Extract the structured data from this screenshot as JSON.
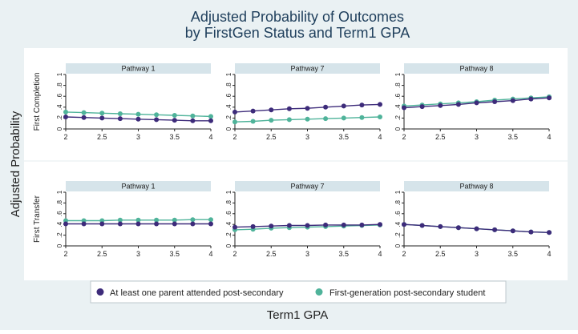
{
  "chart_data": {
    "type": "line",
    "title": "Adjusted Probability of Outcomes",
    "subtitle": "by FirstGen Status and Term1 GPA",
    "xlabel": "Term1 GPA",
    "ylabel": "Adjusted Probability",
    "row_labels": [
      "First Completion",
      "First Transfer"
    ],
    "column_labels": [
      "Pathway 1",
      "Pathway 7",
      "Pathway 8"
    ],
    "x": [
      2,
      2.25,
      2.5,
      2.75,
      3,
      3.25,
      3.5,
      3.75,
      4
    ],
    "x_ticks": [
      2,
      2.5,
      3,
      3.5,
      4
    ],
    "x_tick_labels": [
      "2",
      "2.5",
      "3",
      "3.5",
      "4"
    ],
    "xlim": [
      2,
      4
    ],
    "y_ticks": [
      0,
      0.2,
      0.4,
      0.6,
      0.8,
      1
    ],
    "y_tick_labels": [
      "0",
      ".2",
      ".4",
      ".6",
      ".8",
      "1"
    ],
    "ylim": [
      0,
      1
    ],
    "legend": {
      "placement": "bottom",
      "entries": [
        "At least one parent attended post-secondary",
        "First-generation post-secondary student"
      ]
    },
    "colors": {
      "parent": "#3d2b7a",
      "firstgen": "#4fb39a",
      "strip": "#d6e4ea",
      "outer_bg": "#eaf1f3"
    },
    "panels": [
      {
        "row": 0,
        "column": 0,
        "series": [
          {
            "values": [
              0.22,
              0.21,
              0.2,
              0.19,
              0.18,
              0.17,
              0.16,
              0.15,
              0.15
            ]
          },
          {
            "values": [
              0.31,
              0.3,
              0.29,
              0.28,
              0.27,
              0.26,
              0.25,
              0.24,
              0.23
            ]
          }
        ]
      },
      {
        "row": 0,
        "column": 1,
        "series": [
          {
            "values": [
              0.31,
              0.33,
              0.35,
              0.37,
              0.38,
              0.4,
              0.42,
              0.44,
              0.45
            ]
          },
          {
            "values": [
              0.13,
              0.14,
              0.16,
              0.17,
              0.18,
              0.19,
              0.2,
              0.21,
              0.22
            ]
          }
        ]
      },
      {
        "row": 0,
        "column": 2,
        "series": [
          {
            "values": [
              0.39,
              0.41,
              0.43,
              0.45,
              0.48,
              0.5,
              0.52,
              0.55,
              0.57
            ]
          },
          {
            "values": [
              0.42,
              0.44,
              0.46,
              0.48,
              0.5,
              0.53,
              0.55,
              0.57,
              0.59
            ]
          }
        ]
      },
      {
        "row": 1,
        "column": 0,
        "series": [
          {
            "values": [
              0.41,
              0.41,
              0.41,
              0.41,
              0.41,
              0.41,
              0.41,
              0.41,
              0.41
            ]
          },
          {
            "values": [
              0.47,
              0.47,
              0.47,
              0.48,
              0.48,
              0.48,
              0.48,
              0.49,
              0.49
            ]
          }
        ]
      },
      {
        "row": 1,
        "column": 1,
        "series": [
          {
            "values": [
              0.35,
              0.36,
              0.37,
              0.38,
              0.38,
              0.39,
              0.39,
              0.39,
              0.4
            ]
          },
          {
            "values": [
              0.3,
              0.31,
              0.33,
              0.34,
              0.35,
              0.36,
              0.37,
              0.38,
              0.39
            ]
          }
        ]
      },
      {
        "row": 1,
        "column": 2,
        "series": [
          {
            "values": [
              0.4,
              0.38,
              0.36,
              0.34,
              0.32,
              0.3,
              0.28,
              0.26,
              0.25
            ]
          },
          {
            "values": [
              0.4,
              0.38,
              0.36,
              0.34,
              0.32,
              0.3,
              0.28,
              0.26,
              0.25
            ]
          }
        ]
      }
    ]
  }
}
